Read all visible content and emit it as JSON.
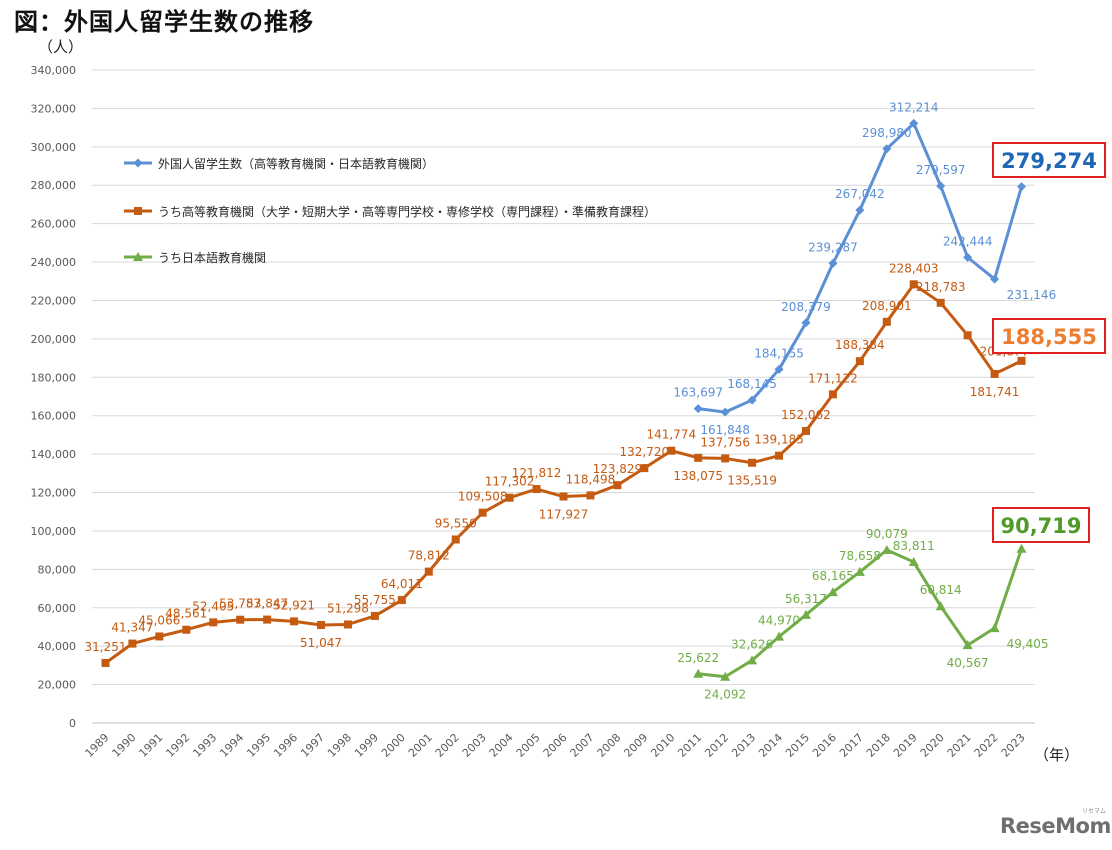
{
  "page": {
    "title": "図：外国人留学生数の推移",
    "logo_text": "ReseMom",
    "logo_tag": "リセマム"
  },
  "chart_data": {
    "type": "line",
    "ylabel": "（人）",
    "xlabel": "（年）",
    "ylim": [
      0,
      340000
    ],
    "yticks": [
      0,
      20000,
      40000,
      60000,
      80000,
      100000,
      120000,
      140000,
      160000,
      180000,
      200000,
      220000,
      240000,
      260000,
      280000,
      300000,
      320000,
      340000
    ],
    "ytick_labels": [
      "0",
      "20,000",
      "40,000",
      "60,000",
      "80,000",
      "100,000",
      "120,000",
      "140,000",
      "160,000",
      "180,000",
      "200,000",
      "220,000",
      "240,000",
      "260,000",
      "280,000",
      "300,000",
      "320,000",
      "340,000"
    ],
    "grid": true,
    "legend_position": "top-left",
    "x": [
      "1989",
      "1990",
      "1991",
      "1992",
      "1993",
      "1994",
      "1995",
      "1996",
      "1997",
      "1998",
      "1999",
      "2000",
      "2001",
      "2002",
      "2003",
      "2004",
      "2005",
      "2006",
      "2007",
      "2008",
      "2009",
      "2010",
      "2011",
      "2012",
      "2013",
      "2014",
      "2015",
      "2016",
      "2017",
      "2018",
      "2019",
      "2020",
      "2021",
      "2022",
      "2023"
    ],
    "series": [
      {
        "name": "外国人留学生数（高等教育機関・日本語教育機関）",
        "color": "#5b8fd6",
        "marker": "diamond",
        "x": [
          "2011",
          "2012",
          "2013",
          "2014",
          "2015",
          "2016",
          "2017",
          "2018",
          "2019",
          "2020",
          "2021",
          "2022",
          "2023"
        ],
        "values": [
          163697,
          161848,
          168145,
          184155,
          208379,
          239287,
          267042,
          298980,
          312214,
          279597,
          242444,
          231146,
          279274
        ],
        "labels": [
          "163,697",
          "161,848",
          "168,145",
          "184,155",
          "208,379",
          "239,287",
          "267,042",
          "298,980",
          "312,214",
          "279,597",
          "242,444",
          "231,146",
          "279,274"
        ]
      },
      {
        "name": "うち高等教育機関（大学・短期大学・高等専門学校・専修学校（専門課程）・準備教育課程）",
        "color": "#c55a11",
        "marker": "square",
        "x": [
          "1989",
          "1990",
          "1991",
          "1992",
          "1993",
          "1994",
          "1995",
          "1996",
          "1997",
          "1998",
          "1999",
          "2000",
          "2001",
          "2002",
          "2003",
          "2004",
          "2005",
          "2006",
          "2007",
          "2008",
          "2009",
          "2010",
          "2011",
          "2012",
          "2013",
          "2014",
          "2015",
          "2016",
          "2017",
          "2018",
          "2019",
          "2020",
          "2021",
          "2022",
          "2023"
        ],
        "values": [
          31251,
          41347,
          45066,
          48561,
          52405,
          53787,
          53847,
          52921,
          51047,
          51298,
          55755,
          64011,
          78812,
          95550,
          109508,
          117302,
          121812,
          117927,
          118498,
          123829,
          132720,
          141774,
          138075,
          137756,
          135519,
          139185,
          152062,
          171122,
          188384,
          208901,
          228403,
          218783,
          201877,
          181741,
          188555
        ],
        "labels": [
          "31,251",
          "41,347",
          "45,066",
          "48,561",
          "52,405",
          "53,787",
          "53,847",
          "52,921",
          "51,047",
          "51,298",
          "55,755",
          "64,011",
          "78,812",
          "95,550",
          "109,508",
          "117,302",
          "121,812",
          "117,927",
          "118,498",
          "123,829",
          "132,720",
          "141,774",
          "138,075",
          "137,756",
          "135,519",
          "139,185",
          "152,062",
          "171,122",
          "188,384",
          "208,901",
          "228,403",
          "218,783",
          "201,877",
          "181,741",
          "188,555"
        ]
      },
      {
        "name": "うち日本語教育機関",
        "color": "#70ad47",
        "marker": "triangle",
        "x": [
          "2011",
          "2012",
          "2013",
          "2014",
          "2015",
          "2016",
          "2017",
          "2018",
          "2019",
          "2020",
          "2021",
          "2022",
          "2023"
        ],
        "values": [
          25622,
          24092,
          32626,
          44970,
          56317,
          68165,
          78658,
          90079,
          83811,
          60814,
          40567,
          49405,
          90719
        ],
        "labels": [
          "25,622",
          "24,092",
          "32,626",
          "44,970",
          "56,317",
          "68,165",
          "78,658",
          "90,079",
          "83,811",
          "60,814",
          "40,567",
          "49,405",
          "90,719"
        ]
      }
    ],
    "callouts": [
      {
        "series": 0,
        "text": "279,274",
        "color": "#1f66b5"
      },
      {
        "series": 1,
        "text": "188,555",
        "color": "#ed7d31"
      },
      {
        "series": 2,
        "text": "90,719",
        "color": "#4f9a2a"
      }
    ]
  }
}
